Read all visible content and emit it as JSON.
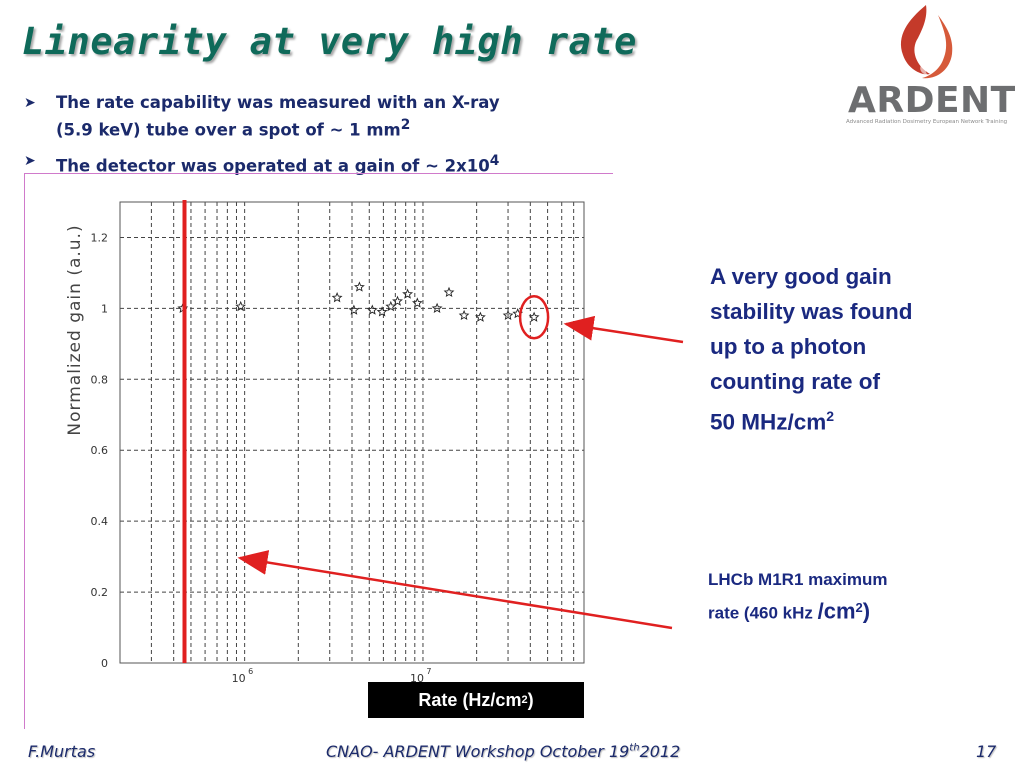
{
  "title": "Linearity at very high rate",
  "bullets": [
    {
      "line1": "The rate capability was measured with an X-ray",
      "line2_prefix": "(5.9 keV) tube over a spot of ~ 1 mm",
      "line2_sup": "2"
    },
    {
      "prefix": "The detector was operated at a  gain of ~ 2x10",
      "sup": "4"
    }
  ],
  "logo": {
    "name": "ARDENT",
    "tagline": "Advanced Radiation Dosimetry European Network Training"
  },
  "rate_label": {
    "prefix": "Rate (Hz/cm",
    "sup": "2",
    "suffix": ")"
  },
  "note1": {
    "lines": [
      "A very good gain",
      "stability was found",
      "up to a photon",
      "counting rate of"
    ],
    "last_prefix": "50 MHz/cm",
    "last_sup": "2"
  },
  "note2": {
    "line1": "LHCb M1R1  maximum",
    "line2_prefix": "rate (460 kHz ",
    "line2_big": "/cm",
    "line2_sup": "2",
    "line2_suffix": ")"
  },
  "footer": {
    "left": "F.Murtas",
    "center_prefix": "CNAO- ARDENT Workshop October 19",
    "center_sup": "th",
    "center_suffix": "2012",
    "page": "17"
  },
  "colors": {
    "title": "#0f6a5a",
    "text": "#1a2980",
    "annotation": "#e02020"
  },
  "chart_data": {
    "type": "scatter",
    "x_scale": "log",
    "xlim": [
      200000,
      80000000
    ],
    "ylim": [
      0,
      1.3
    ],
    "grid": true,
    "ylabel": "Normalized gain (a.u.)",
    "x_tick_labels": [
      {
        "base": "10",
        "exp": "6"
      },
      {
        "base": "10",
        "exp": "7"
      }
    ],
    "y_ticks": [
      "0",
      "0.2",
      "0.4",
      "0.6",
      "0.8",
      "1",
      "1.2"
    ],
    "y_tick_values": [
      0,
      0.2,
      0.4,
      0.6,
      0.8,
      1,
      1.2
    ],
    "marker": "star",
    "x": [
      450000,
      950000,
      3300000,
      4100000,
      4400000,
      5200000,
      5900000,
      6600000,
      7200000,
      8200000,
      9300000,
      12000000,
      14000000,
      17000000,
      21000000,
      30000000,
      34000000,
      42000000
    ],
    "y": [
      1.0,
      1.005,
      1.03,
      0.995,
      1.06,
      0.995,
      0.99,
      1.005,
      1.02,
      1.04,
      1.015,
      1.0,
      1.045,
      0.98,
      0.975,
      0.98,
      0.985,
      0.975
    ],
    "vertical_line_x": 460000,
    "highlight_x": 42000000
  }
}
